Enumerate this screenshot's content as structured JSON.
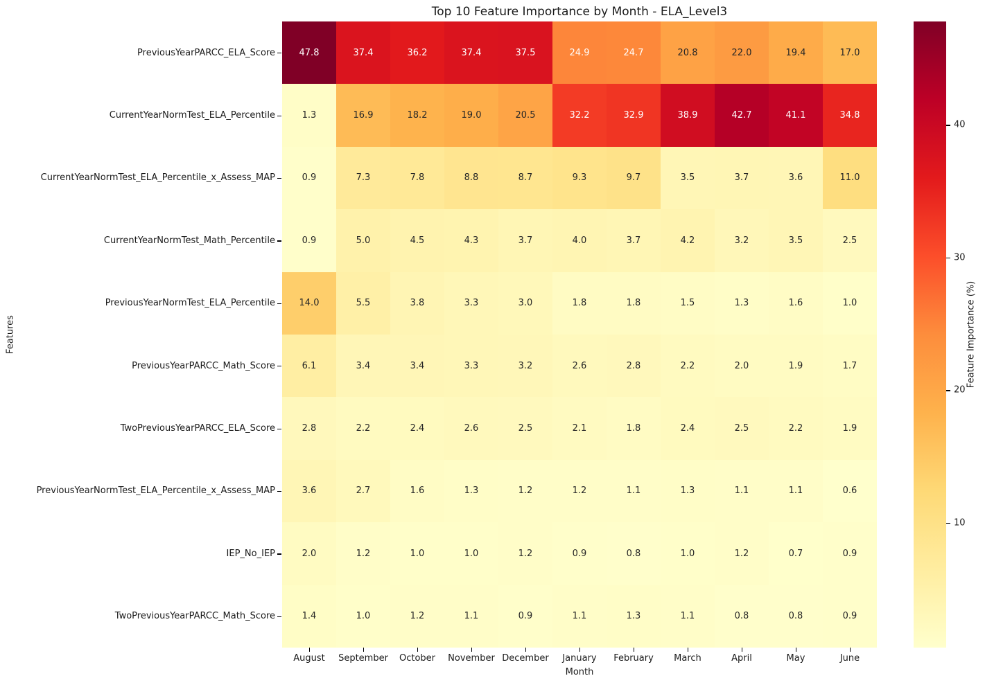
{
  "title": "Top 10 Feature Importance by Month - ELA_Level3",
  "chart_data": {
    "type": "heatmap",
    "title": "Top 10 Feature Importance by Month - ELA_Level3",
    "xlabel": "Month",
    "ylabel": "Features",
    "columns": [
      "August",
      "September",
      "October",
      "November",
      "December",
      "January",
      "February",
      "March",
      "April",
      "May",
      "June"
    ],
    "rows": [
      "PreviousYearPARCC_ELA_Score",
      "CurrentYearNormTest_ELA_Percentile",
      "CurrentYearNormTest_ELA_Percentile_x_Assess_MAP",
      "CurrentYearNormTest_Math_Percentile",
      "PreviousYearNormTest_ELA_Percentile",
      "PreviousYearPARCC_Math_Score",
      "TwoPreviousYearPARCC_ELA_Score",
      "PreviousYearNormTest_ELA_Percentile_x_Assess_MAP",
      "IEP_No_IEP",
      "TwoPreviousYearPARCC_Math_Score"
    ],
    "values": [
      [
        47.8,
        37.4,
        36.2,
        37.4,
        37.5,
        24.9,
        24.7,
        20.8,
        22.0,
        19.4,
        17.0
      ],
      [
        1.3,
        16.9,
        18.2,
        19.0,
        20.5,
        32.2,
        32.9,
        38.9,
        42.7,
        41.1,
        34.8
      ],
      [
        0.9,
        7.3,
        7.8,
        8.8,
        8.7,
        9.3,
        9.7,
        3.5,
        3.7,
        3.6,
        11.0
      ],
      [
        0.9,
        5.0,
        4.5,
        4.3,
        3.7,
        4.0,
        3.7,
        4.2,
        3.2,
        3.5,
        2.5
      ],
      [
        14.0,
        5.5,
        3.8,
        3.3,
        3.0,
        1.8,
        1.8,
        1.5,
        1.3,
        1.6,
        1.0
      ],
      [
        6.1,
        3.4,
        3.4,
        3.3,
        3.2,
        2.6,
        2.8,
        2.2,
        2.0,
        1.9,
        1.7
      ],
      [
        2.8,
        2.2,
        2.4,
        2.6,
        2.5,
        2.1,
        1.8,
        2.4,
        2.5,
        2.2,
        1.9
      ],
      [
        3.6,
        2.7,
        1.6,
        1.3,
        1.2,
        1.2,
        1.1,
        1.3,
        1.1,
        1.1,
        0.6
      ],
      [
        2.0,
        1.2,
        1.0,
        1.0,
        1.2,
        0.9,
        0.8,
        1.0,
        1.2,
        0.7,
        0.9
      ],
      [
        1.4,
        1.0,
        1.2,
        1.1,
        0.9,
        1.1,
        1.3,
        1.1,
        0.8,
        0.8,
        0.9
      ]
    ],
    "value_format": "0.1f",
    "colormap": "YlOrRd",
    "vmin": 0.6,
    "vmax": 47.8,
    "grid": false,
    "colorbar": {
      "label": "Feature Importance (%)",
      "ticks": [
        10,
        20,
        30,
        40
      ],
      "position": "right"
    },
    "annotation_colors": {
      "light_text": "#ffffff",
      "dark_text": "#262626"
    }
  }
}
